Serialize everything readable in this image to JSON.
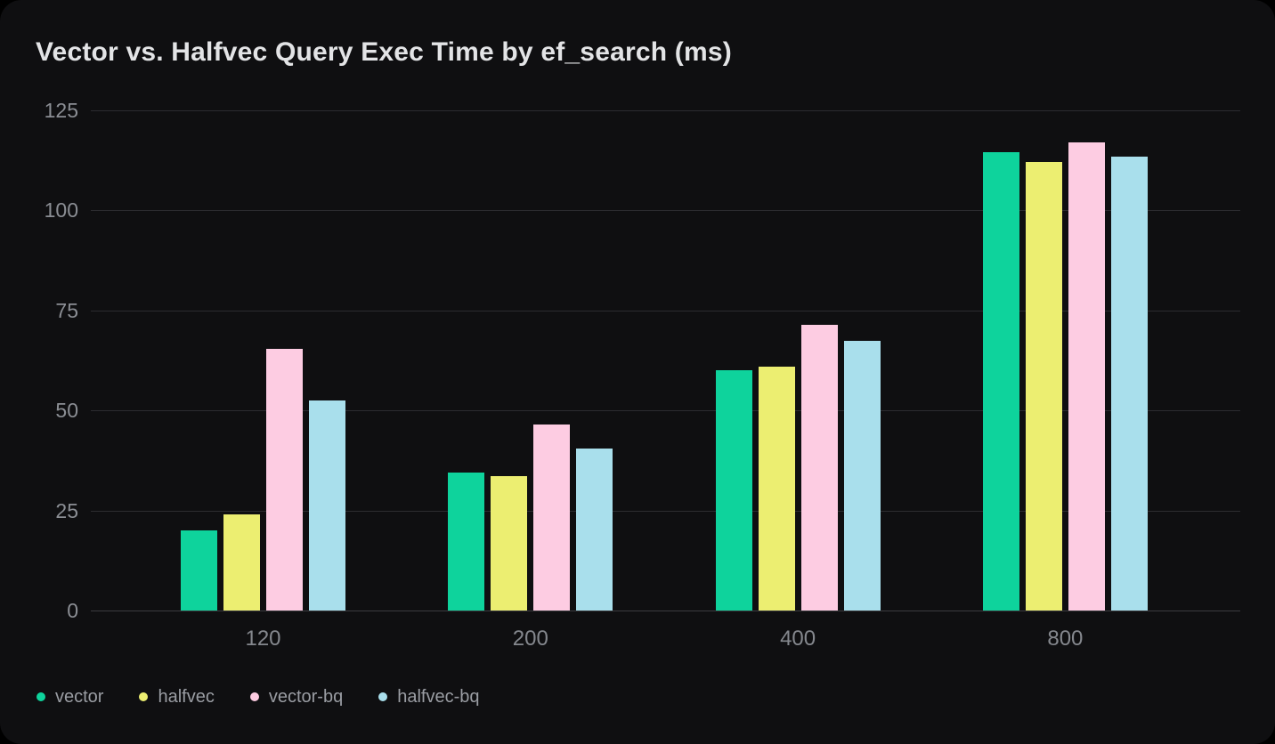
{
  "title": "Vector vs. Halfvec Query Exec Time by ef_search (ms)",
  "chart_data": {
    "type": "bar",
    "title": "Vector vs. Halfvec Query Exec Time by ef_search (ms)",
    "categories": [
      "120",
      "200",
      "400",
      "800"
    ],
    "series": [
      {
        "name": "vector",
        "color": "#0ed39c",
        "values": [
          20,
          34.5,
          60,
          114.5
        ]
      },
      {
        "name": "halfvec",
        "color": "#ecee71",
        "values": [
          24,
          33.5,
          61,
          112
        ]
      },
      {
        "name": "vector-bq",
        "color": "#fdcce2",
        "values": [
          65.5,
          46.5,
          71.5,
          117
        ]
      },
      {
        "name": "halfvec-bq",
        "color": "#a9dfec",
        "values": [
          52.5,
          40.5,
          67.5,
          113.5
        ]
      }
    ],
    "yticks": [
      0,
      25,
      50,
      75,
      100,
      125
    ],
    "ylim": [
      0,
      125
    ],
    "grid": true,
    "legend_position": "bottom-left",
    "legend": [
      "vector",
      "halfvec",
      "vector-bq",
      "halfvec-bq"
    ]
  },
  "colors": {
    "card_background": "#0f0f11",
    "page_background": "#000000",
    "title_text": "#e3e4e6",
    "axis_label_text": "#8b8e94",
    "legend_text": "#9a9da3",
    "gridline": "#2c2c30",
    "zero_line": "#3c3c40"
  }
}
